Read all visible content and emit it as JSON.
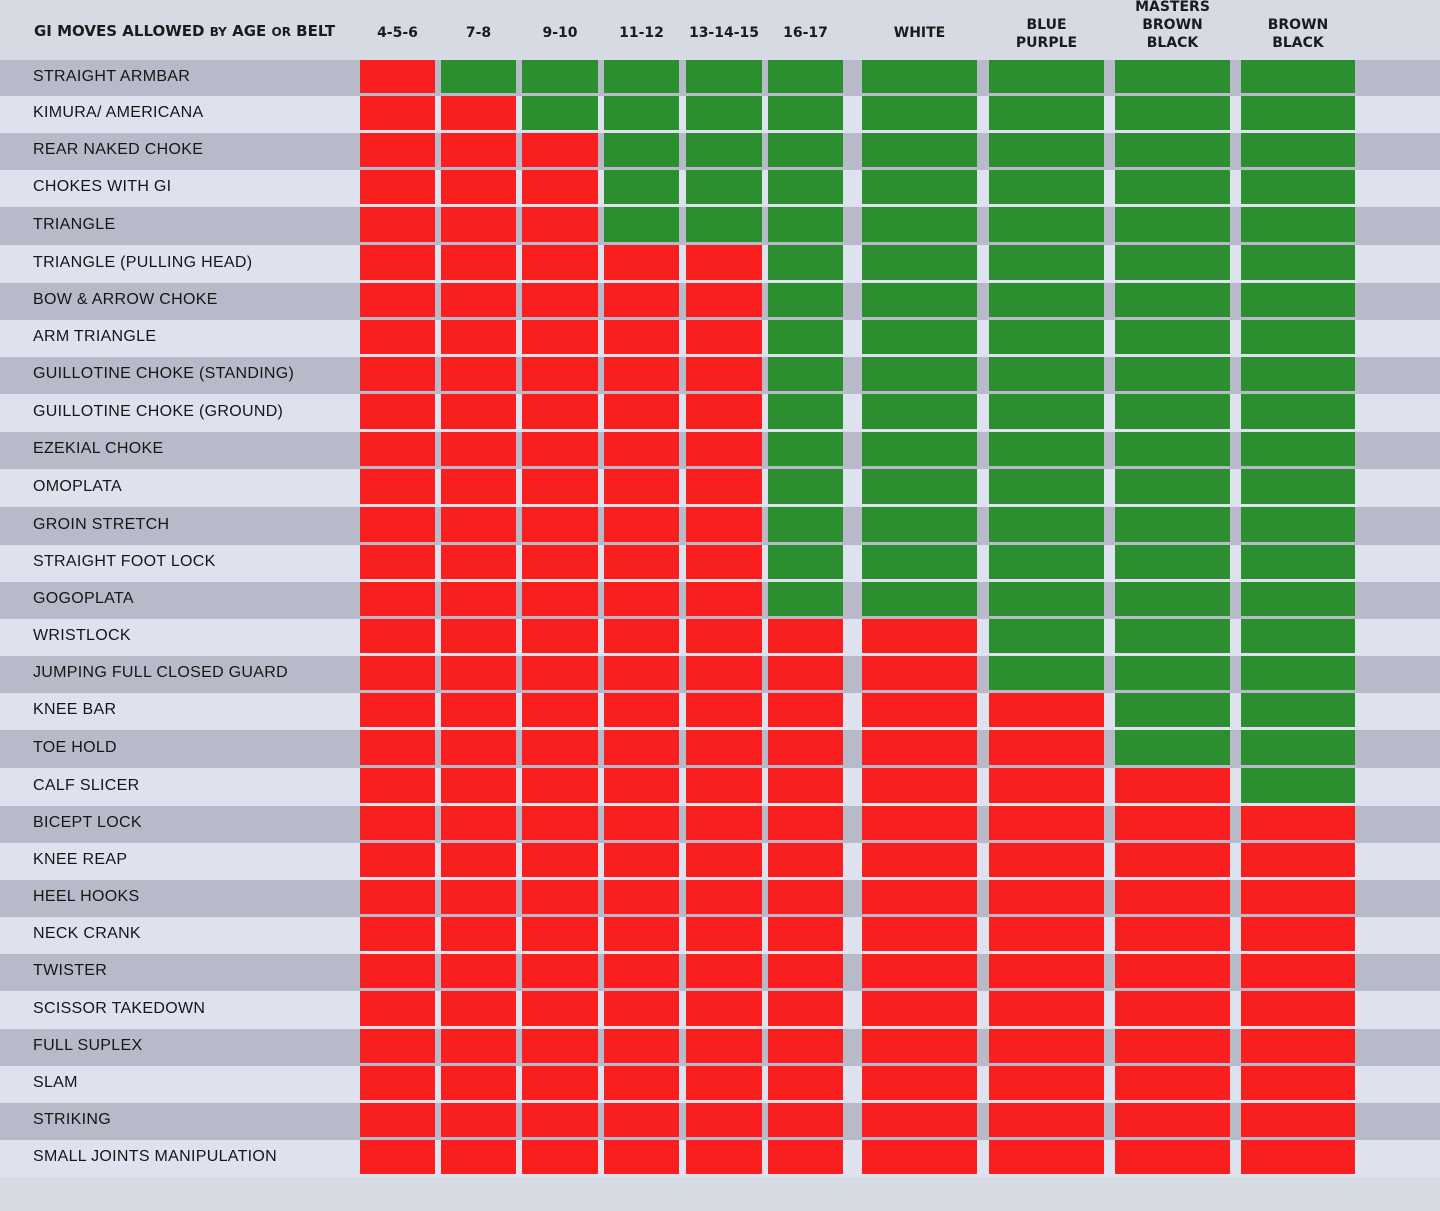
{
  "chart_data": {
    "type": "table",
    "title_parts": [
      {
        "text": "GI MOVES ALLOWED ",
        "small": false
      },
      {
        "text": "BY",
        "small": true
      },
      {
        "text": " AGE ",
        "small": false
      },
      {
        "text": "OR",
        "small": true
      },
      {
        "text": " BELT",
        "small": false
      }
    ],
    "columns": [
      "4-5-6",
      "7-8",
      "9-10",
      "11-12",
      "13-14-15",
      "16-17",
      "WHITE",
      "BLUE\nPURPLE",
      "MASTERS\nBROWN\nBLACK",
      "BROWN\nBLACK"
    ],
    "legend": {
      "allowed": "green",
      "not_allowed": "red"
    },
    "colors": {
      "allowed": "#2b8f2f",
      "not_allowed": "#fa1f1f"
    },
    "rows": [
      {
        "label": "STRAIGHT ARMBAR",
        "allowed": [
          0,
          1,
          1,
          1,
          1,
          1,
          1,
          1,
          1,
          1
        ]
      },
      {
        "label": "KIMURA/ AMERICANA",
        "allowed": [
          0,
          0,
          1,
          1,
          1,
          1,
          1,
          1,
          1,
          1
        ]
      },
      {
        "label": "REAR NAKED CHOKE",
        "allowed": [
          0,
          0,
          0,
          1,
          1,
          1,
          1,
          1,
          1,
          1
        ]
      },
      {
        "label": "CHOKES WITH GI",
        "allowed": [
          0,
          0,
          0,
          1,
          1,
          1,
          1,
          1,
          1,
          1
        ]
      },
      {
        "label": "TRIANGLE",
        "allowed": [
          0,
          0,
          0,
          1,
          1,
          1,
          1,
          1,
          1,
          1
        ]
      },
      {
        "label": "TRIANGLE (PULLING HEAD)",
        "allowed": [
          0,
          0,
          0,
          0,
          0,
          1,
          1,
          1,
          1,
          1
        ]
      },
      {
        "label": "BOW & ARROW CHOKE",
        "allowed": [
          0,
          0,
          0,
          0,
          0,
          1,
          1,
          1,
          1,
          1
        ]
      },
      {
        "label": "ARM TRIANGLE",
        "allowed": [
          0,
          0,
          0,
          0,
          0,
          1,
          1,
          1,
          1,
          1
        ]
      },
      {
        "label": "GUILLOTINE CHOKE (STANDING)",
        "allowed": [
          0,
          0,
          0,
          0,
          0,
          1,
          1,
          1,
          1,
          1
        ]
      },
      {
        "label": "GUILLOTINE CHOKE (GROUND)",
        "allowed": [
          0,
          0,
          0,
          0,
          0,
          1,
          1,
          1,
          1,
          1
        ]
      },
      {
        "label": "EZEKIAL CHOKE",
        "allowed": [
          0,
          0,
          0,
          0,
          0,
          1,
          1,
          1,
          1,
          1
        ]
      },
      {
        "label": "OMOPLATA",
        "allowed": [
          0,
          0,
          0,
          0,
          0,
          1,
          1,
          1,
          1,
          1
        ]
      },
      {
        "label": "GROIN STRETCH",
        "allowed": [
          0,
          0,
          0,
          0,
          0,
          1,
          1,
          1,
          1,
          1
        ]
      },
      {
        "label": "STRAIGHT FOOT LOCK",
        "allowed": [
          0,
          0,
          0,
          0,
          0,
          1,
          1,
          1,
          1,
          1
        ]
      },
      {
        "label": "GOGOPLATA",
        "allowed": [
          0,
          0,
          0,
          0,
          0,
          1,
          1,
          1,
          1,
          1
        ]
      },
      {
        "label": "WRISTLOCK",
        "allowed": [
          0,
          0,
          0,
          0,
          0,
          0,
          0,
          1,
          1,
          1
        ]
      },
      {
        "label": "JUMPING FULL CLOSED GUARD",
        "allowed": [
          0,
          0,
          0,
          0,
          0,
          0,
          0,
          1,
          1,
          1
        ]
      },
      {
        "label": "KNEE BAR",
        "allowed": [
          0,
          0,
          0,
          0,
          0,
          0,
          0,
          0,
          1,
          1
        ]
      },
      {
        "label": "TOE HOLD",
        "allowed": [
          0,
          0,
          0,
          0,
          0,
          0,
          0,
          0,
          1,
          1
        ]
      },
      {
        "label": "CALF SLICER",
        "allowed": [
          0,
          0,
          0,
          0,
          0,
          0,
          0,
          0,
          0,
          1
        ]
      },
      {
        "label": "BICEPT LOCK",
        "allowed": [
          0,
          0,
          0,
          0,
          0,
          0,
          0,
          0,
          0,
          0
        ]
      },
      {
        "label": "KNEE REAP",
        "allowed": [
          0,
          0,
          0,
          0,
          0,
          0,
          0,
          0,
          0,
          0
        ]
      },
      {
        "label": "HEEL HOOKS",
        "allowed": [
          0,
          0,
          0,
          0,
          0,
          0,
          0,
          0,
          0,
          0
        ]
      },
      {
        "label": "NECK CRANK",
        "allowed": [
          0,
          0,
          0,
          0,
          0,
          0,
          0,
          0,
          0,
          0
        ]
      },
      {
        "label": "TWISTER",
        "allowed": [
          0,
          0,
          0,
          0,
          0,
          0,
          0,
          0,
          0,
          0
        ]
      },
      {
        "label": "SCISSOR TAKEDOWN",
        "allowed": [
          0,
          0,
          0,
          0,
          0,
          0,
          0,
          0,
          0,
          0
        ]
      },
      {
        "label": "FULL SUPLEX",
        "allowed": [
          0,
          0,
          0,
          0,
          0,
          0,
          0,
          0,
          0,
          0
        ]
      },
      {
        "label": "SLAM",
        "allowed": [
          0,
          0,
          0,
          0,
          0,
          0,
          0,
          0,
          0,
          0
        ]
      },
      {
        "label": "STRIKING",
        "allowed": [
          0,
          0,
          0,
          0,
          0,
          0,
          0,
          0,
          0,
          0
        ]
      },
      {
        "label": "SMALL JOINTS MANIPULATION",
        "allowed": [
          0,
          0,
          0,
          0,
          0,
          0,
          0,
          0,
          0,
          0
        ]
      }
    ]
  }
}
